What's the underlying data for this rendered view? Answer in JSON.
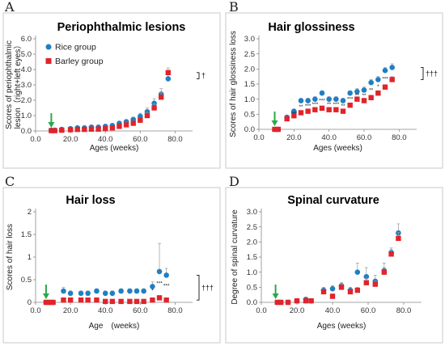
{
  "colors": {
    "rice": "#1f7fc4",
    "barley": "#e0242a",
    "arrow": "#2aa84a",
    "frame": "#c8c8c8"
  },
  "chart_data": [
    {
      "type": "scatter",
      "panel_label": "A",
      "title": "Periophthalmic lesions",
      "xlabel": "Ages (weeks)",
      "ylabel_lines": [
        "Scores of periophthalmic",
        "lesion（right+left eyes）"
      ],
      "xlim": [
        0,
        90
      ],
      "ylim": [
        0,
        6
      ],
      "xticks": [
        0,
        20,
        40,
        60,
        80
      ],
      "xtick_labels": [
        "0.0",
        "20.0",
        "40.0",
        "60.0",
        "80.0"
      ],
      "yticks": [
        0,
        1,
        2,
        3,
        4,
        5,
        6
      ],
      "ytick_labels": [
        "0.0",
        "1.0",
        "2.0",
        "3.0",
        "4.0",
        "5.0",
        "6.0"
      ],
      "grid": false,
      "legend": {
        "position": "top-left",
        "entries": [
          "Rice group",
          "Barley group"
        ]
      },
      "arrow_x": 9,
      "bracket_label": "†",
      "series": [
        {
          "name": "Rice group",
          "marker": "circle",
          "x": [
            9,
            11,
            15,
            20,
            24,
            28,
            32,
            36,
            40,
            44,
            48,
            52,
            56,
            60,
            64,
            68,
            72,
            76
          ],
          "y": [
            0.05,
            0.05,
            0.1,
            0.15,
            0.2,
            0.2,
            0.25,
            0.25,
            0.3,
            0.35,
            0.5,
            0.6,
            0.75,
            0.95,
            1.25,
            1.8,
            2.4,
            3.4
          ],
          "err": [
            0.02,
            0.02,
            0.05,
            0.08,
            0.08,
            0.1,
            0.1,
            0.1,
            0.1,
            0.12,
            0.12,
            0.12,
            0.15,
            0.2,
            0.25,
            0.3,
            0.35,
            0.4
          ]
        },
        {
          "name": "Barley group",
          "marker": "square",
          "x": [
            9,
            11,
            15,
            20,
            24,
            28,
            32,
            36,
            40,
            44,
            48,
            52,
            56,
            60,
            64,
            68,
            72,
            76
          ],
          "y": [
            0.02,
            0.02,
            0.05,
            0.08,
            0.1,
            0.1,
            0.12,
            0.12,
            0.15,
            0.2,
            0.3,
            0.4,
            0.5,
            0.7,
            1.0,
            1.5,
            2.2,
            3.8
          ],
          "err": [
            0.02,
            0.02,
            0.05,
            0.05,
            0.05,
            0.05,
            0.05,
            0.05,
            0.08,
            0.1,
            0.1,
            0.1,
            0.12,
            0.15,
            0.2,
            0.25,
            0.3,
            0.3
          ]
        }
      ]
    },
    {
      "type": "scatter",
      "panel_label": "B",
      "title": "Hair glossiness",
      "xlabel": "Ages (weeks)",
      "ylabel_lines": [
        "Scores of hair glossiness loss"
      ],
      "xlim": [
        0,
        90
      ],
      "ylim": [
        0,
        3
      ],
      "xticks": [
        0,
        20,
        40,
        60,
        80
      ],
      "xtick_labels": [
        "0.0",
        "20.0",
        "40.0",
        "60.0",
        "80.0"
      ],
      "yticks": [
        0,
        0.5,
        1,
        1.5,
        2,
        2.5,
        3
      ],
      "ytick_labels": [
        "0.0",
        "0.5",
        "1.0",
        "1.5",
        "2.0",
        "2.5",
        "3.0"
      ],
      "grid": false,
      "legend": null,
      "arrow_x": 9,
      "bracket_label": "†††",
      "series": [
        {
          "name": "Rice group",
          "marker": "circle",
          "x": [
            9,
            11,
            16,
            20,
            24,
            28,
            32,
            36,
            40,
            44,
            48,
            52,
            56,
            60,
            64,
            68,
            72,
            76
          ],
          "y": [
            0,
            0,
            0.4,
            0.6,
            0.95,
            0.95,
            1.0,
            1.2,
            1.0,
            1.0,
            0.95,
            1.2,
            1.25,
            1.3,
            1.55,
            1.65,
            1.95,
            2.05
          ],
          "err": [
            0,
            0,
            0.05,
            0.05,
            0.08,
            0.08,
            0.08,
            0.08,
            0.08,
            0.08,
            0.08,
            0.08,
            0.1,
            0.1,
            0.1,
            0.1,
            0.1,
            0.12
          ]
        },
        {
          "name": "Barley group",
          "marker": "square",
          "x": [
            9,
            11,
            16,
            20,
            24,
            28,
            32,
            36,
            40,
            44,
            48,
            52,
            56,
            60,
            64,
            68,
            72,
            76
          ],
          "y": [
            0,
            0,
            0.35,
            0.45,
            0.55,
            0.6,
            0.65,
            0.7,
            0.65,
            0.65,
            0.6,
            0.8,
            1.0,
            0.95,
            1.05,
            1.2,
            1.4,
            1.65
          ],
          "err": [
            0,
            0,
            0.05,
            0.05,
            0.05,
            0.05,
            0.05,
            0.05,
            0.05,
            0.05,
            0.05,
            0.05,
            0.08,
            0.08,
            0.08,
            0.08,
            0.08,
            0.1
          ]
        }
      ]
    },
    {
      "type": "scatter",
      "panel_label": "C",
      "title": "Hair loss",
      "xlabel": "Age　(weeks)",
      "ylabel_lines": [
        "Scores of hair loss"
      ],
      "xlim": [
        0,
        90
      ],
      "ylim": [
        0,
        2
      ],
      "xticks": [
        0,
        20,
        40,
        60,
        80
      ],
      "xtick_labels": [
        "0.0",
        "20.0",
        "40.0",
        "60.0",
        "80.0"
      ],
      "yticks": [
        0,
        0.5,
        1,
        1.5,
        2
      ],
      "ytick_labels": [
        "0",
        "0.5",
        "1",
        "1.5",
        "2"
      ],
      "grid": false,
      "legend": null,
      "arrow_x": 6,
      "bracket_label": "†††",
      "series": [
        {
          "name": "Rice group",
          "marker": "circle",
          "x": [
            6,
            8,
            10,
            16,
            20,
            26,
            30,
            35,
            40,
            44,
            49,
            54,
            58,
            62,
            67,
            71,
            75
          ],
          "y": [
            0,
            0,
            0,
            0.25,
            0.2,
            0.2,
            0.2,
            0.25,
            0.2,
            0.2,
            0.25,
            0.25,
            0.25,
            0.25,
            0.35,
            0.68,
            0.6
          ],
          "err": [
            0,
            0,
            0,
            0.08,
            0.05,
            0.05,
            0.05,
            0.05,
            0.05,
            0.05,
            0.05,
            0.05,
            0.05,
            0.05,
            0.1,
            0.62,
            0.15
          ]
        },
        {
          "name": "Barley group",
          "marker": "square",
          "x": [
            6,
            8,
            10,
            16,
            20,
            26,
            30,
            35,
            40,
            44,
            49,
            54,
            58,
            62,
            67,
            71,
            75
          ],
          "y": [
            0,
            0,
            0,
            0.05,
            0.05,
            0.05,
            0.05,
            0.05,
            0.02,
            0.02,
            0.02,
            0.02,
            0.02,
            0.02,
            0.05,
            0.1,
            0.05
          ],
          "err": [
            0,
            0,
            0,
            0.02,
            0.02,
            0.02,
            0.02,
            0.02,
            0.02,
            0.02,
            0.02,
            0.02,
            0.02,
            0.02,
            0.02,
            0.05,
            0.02
          ]
        }
      ]
    },
    {
      "type": "scatter",
      "panel_label": "D",
      "title": "Spinal curvature",
      "xlabel": "Ages (weeks)",
      "ylabel_lines": [
        "Degree of spinal curvature"
      ],
      "xlim": [
        0,
        90
      ],
      "ylim": [
        0,
        3
      ],
      "xticks": [
        0,
        20,
        40,
        60,
        80
      ],
      "xtick_labels": [
        "0.0",
        "20.0",
        "40.0",
        "60.0",
        "80.0"
      ],
      "yticks": [
        0,
        0.5,
        1,
        1.5,
        2,
        2.5,
        3
      ],
      "ytick_labels": [
        "0.0",
        "0.5",
        "1.0",
        "1.5",
        "2.0",
        "2.5",
        "3.0"
      ],
      "grid": false,
      "legend": null,
      "arrow_x": 8,
      "bracket_label": "",
      "series": [
        {
          "name": "Rice group",
          "marker": "circle",
          "x": [
            9,
            11,
            15,
            20,
            25,
            28,
            35,
            40,
            45,
            50,
            54,
            59,
            64,
            69,
            73,
            77
          ],
          "y": [
            0,
            0,
            0,
            0.05,
            0.1,
            0.05,
            0.4,
            0.45,
            0.55,
            0.4,
            1.0,
            0.85,
            0.7,
            1.05,
            1.65,
            2.3
          ],
          "err": [
            0,
            0,
            0,
            0.05,
            0.05,
            0.05,
            0.1,
            0.1,
            0.1,
            0.1,
            0.3,
            0.3,
            0.2,
            0.25,
            0.15,
            0.3
          ]
        },
        {
          "name": "Barley group",
          "marker": "square",
          "x": [
            9,
            11,
            15,
            20,
            25,
            28,
            35,
            40,
            45,
            50,
            54,
            59,
            64,
            69,
            73,
            77
          ],
          "y": [
            0,
            0,
            0,
            0.05,
            0.05,
            0.05,
            0.35,
            0.2,
            0.5,
            0.35,
            0.4,
            0.65,
            0.6,
            1.0,
            1.6,
            2.12
          ],
          "err": [
            0,
            0,
            0,
            0.03,
            0.03,
            0.03,
            0.08,
            0.08,
            0.1,
            0.08,
            0.1,
            0.15,
            0.1,
            0.15,
            0.15,
            0.2
          ]
        }
      ]
    }
  ]
}
